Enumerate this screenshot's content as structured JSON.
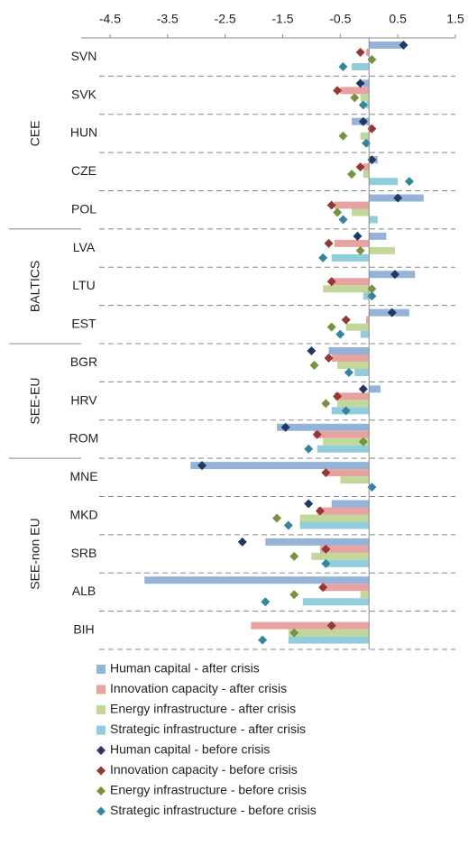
{
  "chart_data": {
    "type": "bar",
    "orientation": "horizontal",
    "groups": [
      {
        "name": "CEE",
        "categories": [
          "SVN",
          "SVK",
          "HUN",
          "CZE",
          "POL"
        ]
      },
      {
        "name": "BALTICS",
        "categories": [
          "LVA",
          "LTU",
          "EST"
        ]
      },
      {
        "name": "SEE-EU",
        "categories": [
          "BGR",
          "HRV",
          "ROM"
        ]
      },
      {
        "name": "SEE-non EU",
        "categories": [
          "MNE",
          "MKD",
          "SRB",
          "ALB",
          "BIH"
        ]
      }
    ],
    "xlim": [
      -5,
      1.5
    ],
    "xticks": [
      -4.5,
      -3.5,
      -2.5,
      -1.5,
      -0.5,
      0.5,
      1.5
    ],
    "series": [
      {
        "name": "Human capital - after crisis",
        "kind": "bar",
        "color": "#95b3d7",
        "values": [
          0.6,
          -0.1,
          -0.3,
          0.15,
          0.95,
          0.3,
          0.8,
          0.7,
          -0.7,
          0.2,
          -1.6,
          -3.1,
          -0.65,
          -1.8,
          -3.9,
          0
        ]
      },
      {
        "name": "Innovation capacity - after crisis",
        "kind": "bar",
        "color": "#e6a3a1",
        "values": [
          -0.05,
          -0.5,
          0.05,
          -0.1,
          -0.6,
          -0.6,
          -0.65,
          -0.05,
          -0.65,
          -0.6,
          -0.95,
          -0.75,
          -0.9,
          -0.85,
          -0.8,
          -2.05
        ]
      },
      {
        "name": "Energy infrastructure - after crisis",
        "kind": "bar",
        "color": "#c4d79b",
        "values": [
          0,
          -0.15,
          -0.15,
          -0.1,
          -0.3,
          0.45,
          -0.8,
          -0.4,
          -0.55,
          -0.55,
          -0.8,
          -0.5,
          -1.2,
          -1.0,
          -0.15,
          -1.4
        ]
      },
      {
        "name": "Strategic infrastructure - after crisis",
        "kind": "bar",
        "color": "#92cddc",
        "values": [
          -0.3,
          -0.05,
          -0.05,
          0.5,
          0.15,
          -0.65,
          -0.1,
          -0.15,
          -0.25,
          -0.65,
          -0.9,
          0,
          -1.2,
          -0.75,
          -1.15,
          -1.4
        ]
      },
      {
        "name": "Human capital - before crisis",
        "kind": "marker",
        "color": "#1f3864",
        "values": [
          0.6,
          -0.15,
          -0.1,
          0.05,
          0.5,
          -0.2,
          0.45,
          0.4,
          -1.0,
          -0.1,
          -1.45,
          -2.9,
          -1.05,
          -2.2,
          null,
          null
        ]
      },
      {
        "name": "Innovation capacity - before crisis",
        "kind": "marker",
        "color": "#953735",
        "values": [
          -0.15,
          -0.55,
          0.05,
          -0.15,
          -0.65,
          -0.7,
          -0.65,
          -0.4,
          -0.7,
          -0.55,
          -0.9,
          -0.75,
          -0.85,
          -0.75,
          -0.8,
          -0.65
        ]
      },
      {
        "name": "Energy infrastructure - before crisis",
        "kind": "marker",
        "color": "#77933c",
        "values": [
          0.05,
          -0.25,
          -0.45,
          -0.3,
          -0.55,
          -0.15,
          0.05,
          -0.65,
          -0.95,
          -0.75,
          -0.1,
          null,
          -1.6,
          -1.3,
          -1.3,
          -1.3
        ]
      },
      {
        "name": "Strategic infrastructure - before crisis",
        "kind": "marker",
        "color": "#31859c",
        "values": [
          -0.45,
          -0.1,
          -0.05,
          0.7,
          -0.45,
          -0.8,
          0.05,
          -0.5,
          -0.35,
          -0.4,
          -1.05,
          0.05,
          -1.4,
          -0.75,
          -1.8,
          -1.85
        ]
      }
    ]
  }
}
